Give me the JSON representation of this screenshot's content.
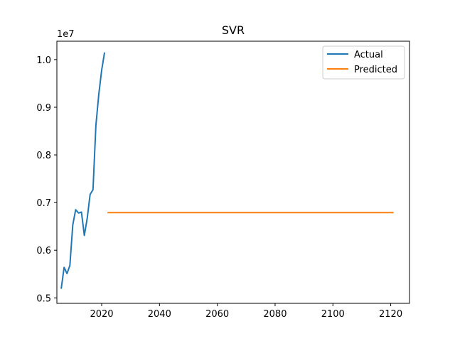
{
  "chart_data": {
    "type": "line",
    "title": "SVR",
    "xlabel": "",
    "ylabel": "",
    "y_offset_label": "1e7",
    "xlim": [
      2004.5,
      2126.5
    ],
    "ylim": [
      0.4885,
      1.0386
    ],
    "x_ticks": [
      2020,
      2040,
      2060,
      2080,
      2100,
      2120
    ],
    "y_ticks": [
      0.5,
      0.6,
      0.7,
      0.8,
      0.9,
      1.0
    ],
    "x_tick_labels": [
      "2020",
      "2040",
      "2060",
      "2080",
      "2100",
      "2120"
    ],
    "y_tick_labels": [
      "0.5",
      "0.6",
      "0.7",
      "0.8",
      "0.9",
      "1.0"
    ],
    "grid": false,
    "legend_position": "top-right",
    "series": [
      {
        "name": "Actual",
        "color": "#1f77b4",
        "x": [
          2006,
          2007,
          2008,
          2009,
          2010,
          2011,
          2012,
          2013,
          2014,
          2015,
          2016,
          2017,
          2018,
          2019,
          2020,
          2021
        ],
        "y": [
          0.519,
          0.564,
          0.551,
          0.568,
          0.653,
          0.685,
          0.678,
          0.68,
          0.631,
          0.667,
          0.717,
          0.727,
          0.862,
          0.927,
          0.978,
          1.015
        ]
      },
      {
        "name": "Predicted",
        "color": "#ff7f0e",
        "x": [
          2022,
          2121
        ],
        "y": [
          0.679,
          0.679
        ]
      }
    ]
  }
}
